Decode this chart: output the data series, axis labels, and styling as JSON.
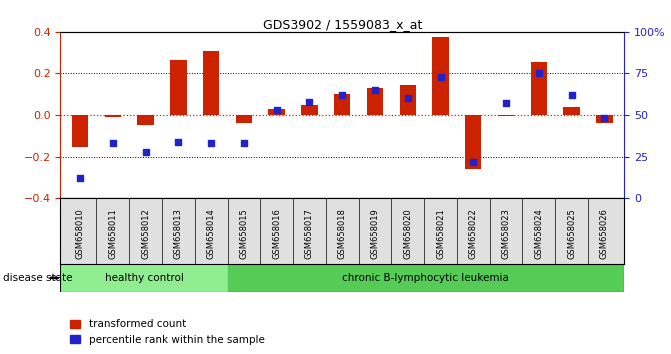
{
  "title": "GDS3902 / 1559083_x_at",
  "samples": [
    "GSM658010",
    "GSM658011",
    "GSM658012",
    "GSM658013",
    "GSM658014",
    "GSM658015",
    "GSM658016",
    "GSM658017",
    "GSM658018",
    "GSM658019",
    "GSM658020",
    "GSM658021",
    "GSM658022",
    "GSM658023",
    "GSM658024",
    "GSM658025",
    "GSM658026"
  ],
  "red_values": [
    -0.155,
    -0.01,
    -0.05,
    0.265,
    0.31,
    -0.04,
    0.03,
    0.05,
    0.1,
    0.13,
    0.145,
    0.375,
    -0.26,
    -0.005,
    0.255,
    0.04,
    -0.04
  ],
  "blue_values": [
    0.12,
    0.33,
    0.28,
    0.34,
    0.33,
    0.33,
    0.53,
    0.58,
    0.62,
    0.65,
    0.6,
    0.73,
    0.22,
    0.57,
    0.75,
    0.62,
    0.48
  ],
  "ylim_left": [
    -0.4,
    0.4
  ],
  "ylim_right": [
    0,
    100
  ],
  "yticks_left": [
    -0.4,
    -0.2,
    0.0,
    0.2,
    0.4
  ],
  "yticks_right": [
    0,
    25,
    50,
    75,
    100
  ],
  "group_boundary": 5,
  "group1_label": "healthy control",
  "group2_label": "chronic B-lymphocytic leukemia",
  "group1_color": "#90ee90",
  "group2_color": "#55cc55",
  "bar_color": "#cc2200",
  "dot_color": "#2222cc",
  "legend_red": "transformed count",
  "legend_blue": "percentile rank within the sample",
  "disease_state_label": "disease state",
  "zero_line_color": "#cc2200",
  "grid_color": "#000000",
  "bg_color": "#ffffff",
  "bar_width": 0.5,
  "dot_size": 18
}
